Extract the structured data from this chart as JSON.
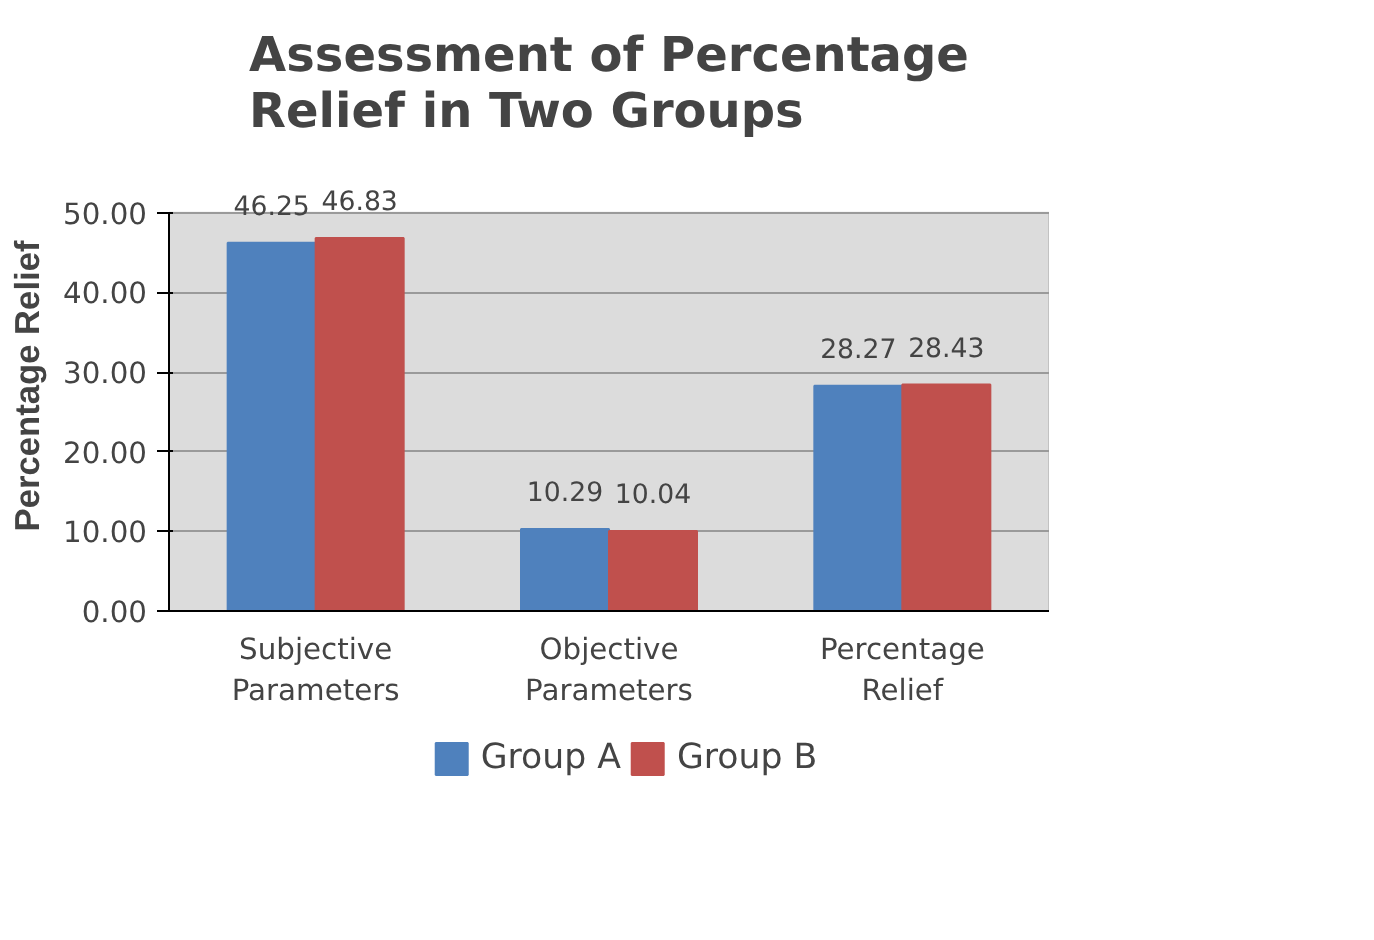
{
  "chart_data": {
    "type": "bar",
    "title": "Assessment of Percentage Relief in Two Groups",
    "ylabel": "Percentage Relief",
    "categories": [
      "Subjective Parameters",
      "Objective Parameters",
      "Percentage Relief"
    ],
    "series": [
      {
        "name": "Group A",
        "color": "#4f81bd",
        "values": [
          46.25,
          10.29,
          28.27
        ]
      },
      {
        "name": "Group B",
        "color": "#c0504d",
        "values": [
          46.83,
          10.04,
          28.43
        ]
      }
    ],
    "ylim": [
      0,
      50
    ],
    "yticks": [
      {
        "value": 0,
        "label": "0.00"
      },
      {
        "value": 10,
        "label": "10.00"
      },
      {
        "value": 20,
        "label": "20.00"
      },
      {
        "value": 30,
        "label": "30.00"
      },
      {
        "value": 40,
        "label": "40.00"
      },
      {
        "value": 50,
        "label": "50.00"
      }
    ],
    "grid": "y",
    "legend": "bottom",
    "data_labels": true
  }
}
